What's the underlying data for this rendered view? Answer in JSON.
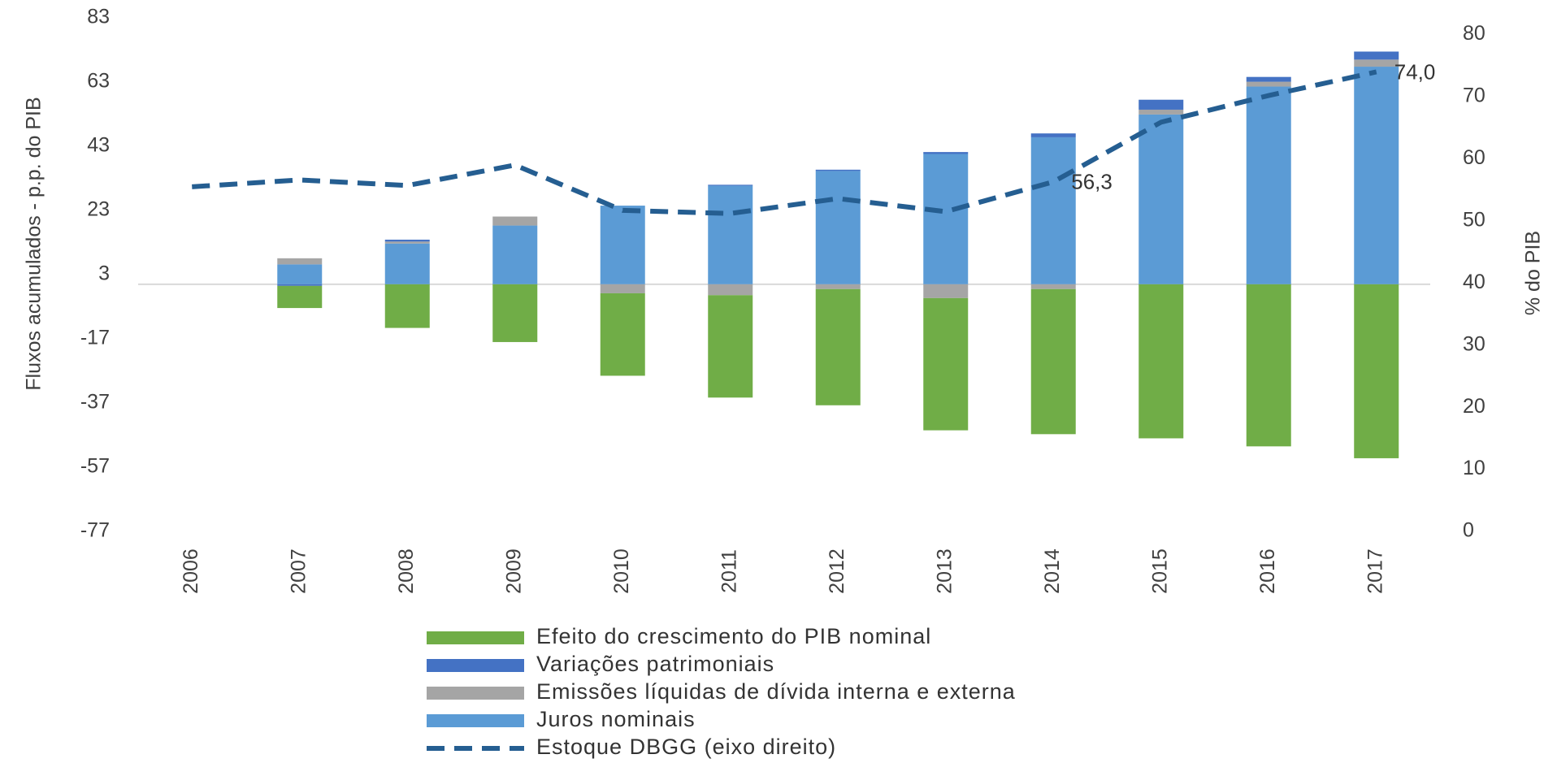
{
  "chart_data": {
    "type": "bar",
    "categories": [
      "2006",
      "2007",
      "2008",
      "2009",
      "2010",
      "2011",
      "2012",
      "2013",
      "2014",
      "2015",
      "2016",
      "2017"
    ],
    "y_label": "Fluxos acumulados - p.p. do PIB",
    "y2_label": "% do PIB",
    "ylim": [
      -77,
      83
    ],
    "yticks": [
      -77,
      -57,
      -37,
      -17,
      3,
      23,
      43,
      63,
      83
    ],
    "y2lim": [
      0,
      82.7
    ],
    "y2ticks": [
      0,
      10,
      20,
      30,
      40,
      50,
      60,
      70,
      80
    ],
    "series": [
      {
        "name": "Efeito do crescimento do PIB nominal",
        "color": "#70ad47",
        "values": [
          null,
          -6.9,
          -13.6,
          -18,
          -25.7,
          -31.9,
          -36.2,
          -41.2,
          -45.2,
          -48,
          -50.5,
          -54.2
        ]
      },
      {
        "name": "Variações patrimoniais",
        "color": "#4472c4",
        "values": [
          null,
          -0.5,
          0.6,
          0,
          0,
          0.3,
          0.4,
          0.6,
          1.2,
          3.1,
          1.5,
          2.5
        ]
      },
      {
        "name": "Emissões líquidas de dívida interna e externa",
        "color": "#a5a5a5",
        "values": [
          null,
          1.9,
          0.6,
          2.8,
          -2.8,
          -3.4,
          -1.5,
          -4.3,
          -1.5,
          1.5,
          1.5,
          2.2
        ]
      },
      {
        "name": "Juros nominais",
        "color": "#5b9bd5",
        "values": [
          null,
          6.2,
          12.7,
          18.3,
          24.5,
          30.7,
          35.3,
          40.6,
          45.8,
          52.9,
          61.6,
          67.8
        ]
      },
      {
        "name": "Estoque DBGG (eixo direito)",
        "color": "#255e91",
        "type": "line",
        "axis": "y2",
        "dashed": true,
        "values": [
          55.5,
          56.6,
          55.7,
          59.0,
          51.7,
          51.2,
          53.6,
          51.5,
          56.3,
          65.9,
          70.2,
          74.0
        ],
        "value_labels": [
          null,
          null,
          null,
          null,
          null,
          null,
          null,
          null,
          "56,3",
          null,
          null,
          "74,0"
        ]
      }
    ]
  }
}
